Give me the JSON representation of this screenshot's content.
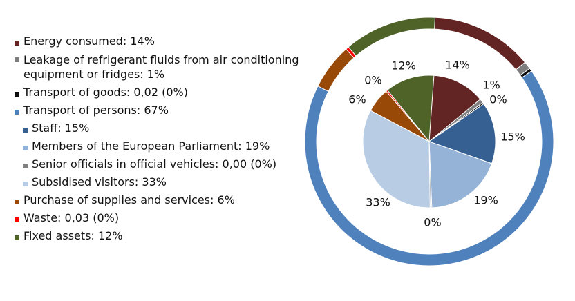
{
  "chart_data": {
    "type": "pie",
    "title": "",
    "outer_ring": {
      "slices": [
        {
          "label": "Energy consumed",
          "value": 14,
          "color": "#632523"
        },
        {
          "label": "Leakage of refrigerant fluids from air conditioning equipment or fridges",
          "value": 1,
          "color": "#7f7f7f"
        },
        {
          "label": "Transport of goods",
          "value": 0.02,
          "color": "#0d0d0d"
        },
        {
          "label": "Transport of persons",
          "value": 67,
          "color": "#4f81bd"
        },
        {
          "label": "Purchase of supplies and services",
          "value": 6,
          "color": "#984807"
        },
        {
          "label": "Waste",
          "value": 0.03,
          "color": "#ff0000"
        },
        {
          "label": "Fixed assets",
          "value": 12,
          "color": "#4f6228"
        }
      ]
    },
    "inner_pie": {
      "slices": [
        {
          "label": "Energy consumed",
          "value": 14,
          "color": "#632523",
          "value_label": "14%"
        },
        {
          "label": "Leakage of refrigerant fluids from air conditioning equipment or fridges",
          "value": 1,
          "color": "#7f7f7f",
          "value_label": "1%"
        },
        {
          "label": "Transport of goods",
          "value": 0.02,
          "color": "#0d0d0d",
          "value_label": "0%"
        },
        {
          "label": "Staff",
          "value": 15,
          "color": "#366092",
          "value_label": "15%"
        },
        {
          "label": "Members of the European Parliament",
          "value": 19,
          "color": "#95b3d7",
          "value_label": "19%"
        },
        {
          "label": "Senior officials in official vehicles",
          "value": 0.0,
          "color": "#808080",
          "value_label": "0%"
        },
        {
          "label": "Subsidised visitors",
          "value": 33,
          "color": "#b8cce4",
          "value_label": "33%"
        },
        {
          "label": "Purchase of supplies and services",
          "value": 6,
          "color": "#984807",
          "value_label": "6%"
        },
        {
          "label": "Waste",
          "value": 0.03,
          "color": "#ff0000",
          "value_label": "0%"
        },
        {
          "label": "Fixed assets",
          "value": 12,
          "color": "#4f6228",
          "value_label": "12%"
        }
      ]
    },
    "legend": [
      {
        "text": "Energy consumed: 14%",
        "color": "#632523",
        "indent": false
      },
      {
        "text": "Leakage of refrigerant fluids from air conditioning equipment or fridges: 1%",
        "color": "#7f7f7f",
        "indent": false
      },
      {
        "text": "Transport of goods: 0,02 (0%)",
        "color": "#0d0d0d",
        "indent": false
      },
      {
        "text": "Transport of persons: 67%",
        "color": "#4f81bd",
        "indent": false
      },
      {
        "text": "Staff: 15%",
        "color": "#366092",
        "indent": true
      },
      {
        "text": "Members of the European Parliament: 19%",
        "color": "#95b3d7",
        "indent": true
      },
      {
        "text": "Senior officials in official vehicles: 0,00 (0%)",
        "color": "#808080",
        "indent": true
      },
      {
        "text": "Subsidised visitors: 33%",
        "color": "#b8cce4",
        "indent": true
      },
      {
        "text": "Purchase of supplies and services: 6%",
        "color": "#984807",
        "indent": false
      },
      {
        "text": "Waste: 0,03 (0%)",
        "color": "#ff0000",
        "indent": false
      },
      {
        "text": "Fixed assets: 12%",
        "color": "#4f6228",
        "indent": false
      }
    ],
    "legend_position": "left"
  }
}
